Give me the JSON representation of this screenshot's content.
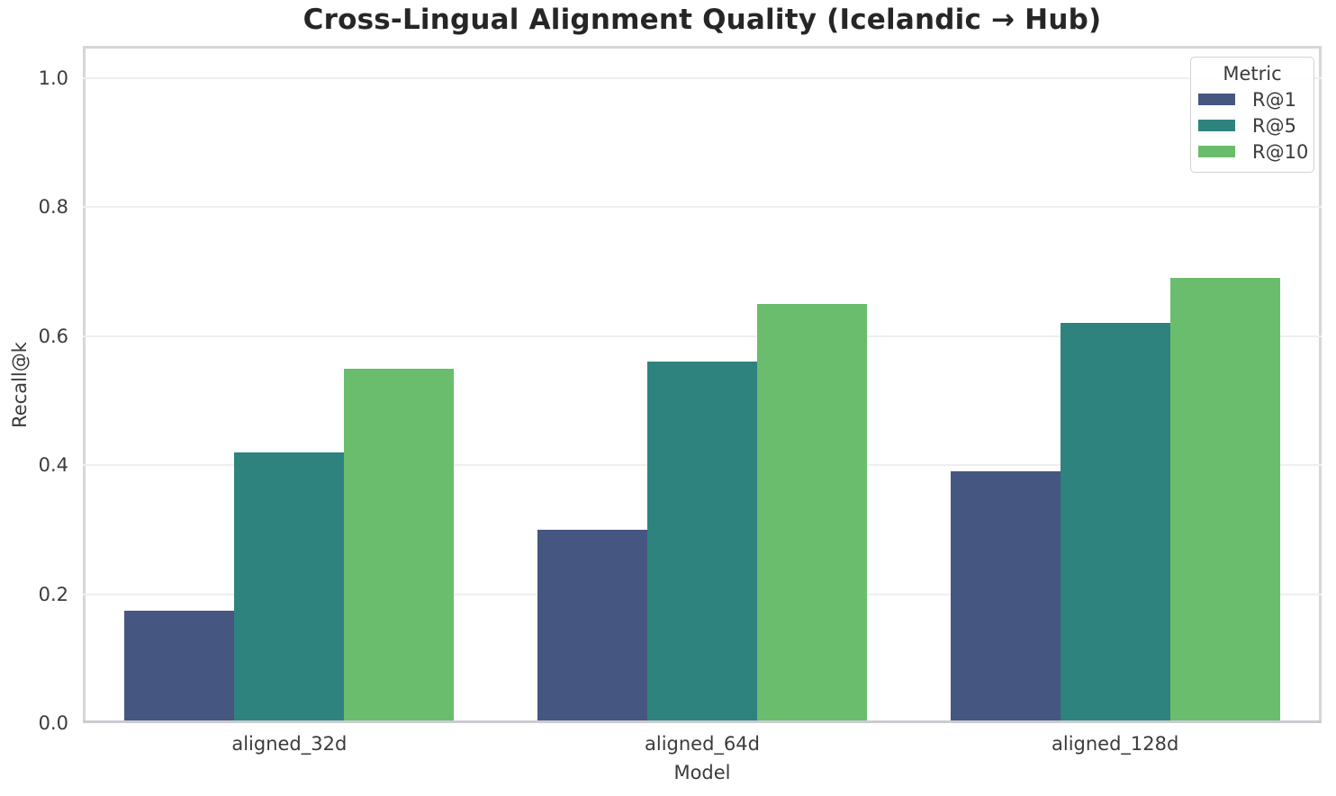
{
  "title": "Cross-Lingual Alignment Quality (Icelandic → Hub)",
  "axes": {
    "x_label": "Model",
    "y_label": "Recall@k",
    "y_ticks": [
      "0.0",
      "0.2",
      "0.4",
      "0.6",
      "0.8",
      "1.0"
    ]
  },
  "legend": {
    "title": "Metric",
    "entries": [
      {
        "label": "R@1",
        "color": "#455780"
      },
      {
        "label": "R@5",
        "color": "#2e837e"
      },
      {
        "label": "R@10",
        "color": "#6abd6c"
      }
    ]
  },
  "chart_data": {
    "type": "bar",
    "title": "Cross-Lingual Alignment Quality (Icelandic → Hub)",
    "xlabel": "Model",
    "ylabel": "Recall@k",
    "categories": [
      "aligned_32d",
      "aligned_64d",
      "aligned_128d"
    ],
    "series": [
      {
        "name": "R@1",
        "color": "#455780",
        "values": [
          0.175,
          0.3,
          0.39
        ]
      },
      {
        "name": "R@5",
        "color": "#2e837e",
        "values": [
          0.42,
          0.56,
          0.62
        ]
      },
      {
        "name": "R@10",
        "color": "#6abd6c",
        "values": [
          0.55,
          0.65,
          0.69
        ]
      }
    ],
    "ylim": [
      0,
      1.05
    ],
    "grid": true,
    "legend_position": "upper right"
  },
  "colors": {
    "background": "#ffffff",
    "grid": "#efeff2",
    "spine": "#d5d5db",
    "text": "#3b3b3b",
    "title_text": "#262626"
  }
}
